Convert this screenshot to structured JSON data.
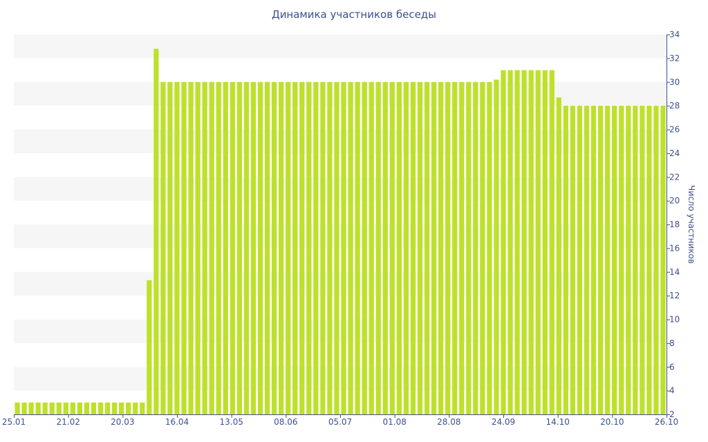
{
  "chart_data": {
    "type": "bar",
    "title": "Динамика участников беседы",
    "xlabel": "",
    "ylabel": "Число участников",
    "ylim": [
      2,
      34
    ],
    "y_ticks": [
      2,
      4,
      6,
      8,
      10,
      12,
      14,
      16,
      18,
      20,
      22,
      24,
      26,
      28,
      30,
      32,
      34
    ],
    "y_axis_side": "right",
    "grid": "alternating horizontal bands",
    "x_tick_labels": [
      "25.01",
      "21.02",
      "20.03",
      "16.04",
      "13.05",
      "08.06",
      "05.07",
      "01.08",
      "28.08",
      "24.09",
      "14.10",
      "20.10",
      "26.10"
    ],
    "series": [
      {
        "values": [
          3,
          3,
          3,
          3,
          3,
          3,
          3,
          3,
          3,
          3,
          3,
          3,
          3,
          3,
          3,
          3,
          3,
          3,
          3,
          13.3,
          32.8,
          30,
          30,
          30,
          30,
          30,
          30,
          30,
          30,
          30,
          30,
          30,
          30,
          30,
          30,
          30,
          30,
          30,
          30,
          30,
          30,
          30,
          30,
          30,
          30,
          30,
          30,
          30,
          30,
          30,
          30,
          30,
          30,
          30,
          30,
          30,
          30,
          30,
          30,
          30,
          30,
          30,
          30,
          30,
          30,
          30,
          30,
          30,
          30,
          30.2,
          31,
          31,
          31,
          31,
          31,
          31,
          31,
          31,
          28.7,
          28,
          28,
          28,
          28,
          28,
          28,
          28,
          28,
          28,
          28,
          28,
          28,
          28,
          28,
          28
        ],
        "color": "#bde12a"
      }
    ]
  },
  "colors": {
    "bar": "#bde12a",
    "band": "#f6f6f6",
    "axis": "#3b4f8f",
    "text": "#3b4f8f"
  }
}
